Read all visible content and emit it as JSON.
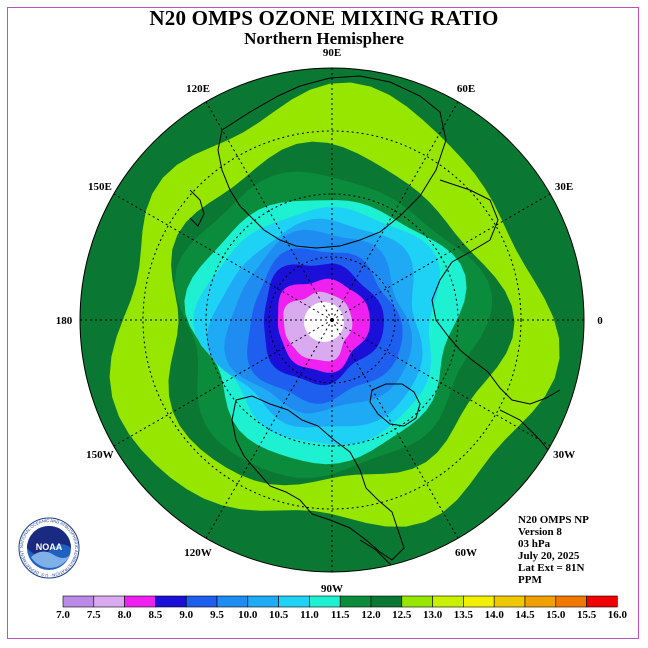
{
  "title": "N20 OMPS OZONE MIXING RATIO",
  "subtitle": "Northern Hemisphere",
  "longitude_labels": [
    "90E",
    "60E",
    "30E",
    "0",
    "30W",
    "60W",
    "90W",
    "120W",
    "150W",
    "180",
    "150E",
    "120E"
  ],
  "info": {
    "product": "N20 OMPS NP",
    "version": "Version 8",
    "level": "03 hPa",
    "date": "July 20, 2025",
    "lat_ext": "Lat Ext = 81N",
    "units": "PPM"
  },
  "logo": {
    "text": "NOAA",
    "ring_text": "NATIONAL OCEANIC AND ATMOSPHERIC ADMINISTRATION · U.S. DEPARTMENT OF COMMERCE"
  },
  "colorbar": {
    "labels": [
      "7.0",
      "7.5",
      "8.0",
      "8.5",
      "9.0",
      "9.5",
      "10.0",
      "10.5",
      "11.0",
      "11.5",
      "12.0",
      "12.5",
      "13.0",
      "13.5",
      "14.0",
      "14.5",
      "15.0",
      "15.5",
      "16.0"
    ],
    "colors": [
      "#b98ae6",
      "#d9aaf0",
      "#f020f0",
      "#1a10d8",
      "#1e5ff0",
      "#1e8cf0",
      "#1eaaf5",
      "#1ed2f5",
      "#1ef0d2",
      "#0a8c3c",
      "#0a7832",
      "#96e600",
      "#c8f000",
      "#f0f000",
      "#f0c800",
      "#f0a000",
      "#f07800",
      "#f00000",
      "#965a32"
    ]
  },
  "map": {
    "contour_levels": [
      {
        "level": "12.5",
        "color": "#96e600"
      },
      {
        "level": "12.0",
        "color": "#0a7832"
      },
      {
        "level": "11.5",
        "color": "#0a8c3c"
      },
      {
        "level": "11.0",
        "color": "#1ef0d2"
      },
      {
        "level": "10.5",
        "color": "#1ed2f5"
      },
      {
        "level": "10.0",
        "color": "#1eaaf5"
      },
      {
        "level": "9.5",
        "color": "#1e8cf0"
      },
      {
        "level": "9.0",
        "color": "#1e5ff0"
      },
      {
        "level": "8.5",
        "color": "#1a10d8"
      },
      {
        "level": "8.0",
        "color": "#f020f0"
      },
      {
        "level": "7.5",
        "color": "#d9aaf0"
      }
    ],
    "outer_color": "#0a7832",
    "pole_missing_color": "#ffffff"
  }
}
